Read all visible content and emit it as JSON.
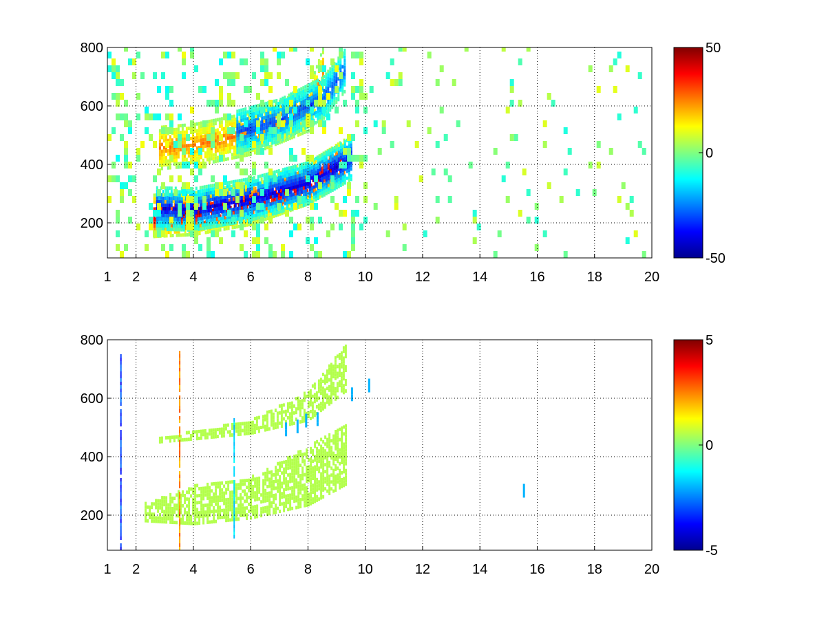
{
  "chart_data": [
    {
      "type": "heatmap",
      "title": "",
      "xlabel": "",
      "ylabel": "",
      "xlim": [
        1,
        20
      ],
      "ylim": [
        80,
        800
      ],
      "grid": true,
      "x_ticks": [
        1,
        2,
        4,
        6,
        8,
        10,
        12,
        14,
        16,
        18,
        20
      ],
      "y_ticks": [
        200,
        400,
        600,
        800
      ],
      "colormap": "jet",
      "colorbar": {
        "min": -50,
        "max": 50,
        "ticks": [
          -50,
          0,
          50
        ]
      },
      "features": [
        {
          "kind": "arc",
          "x": [
            2.6,
            4,
            6,
            8,
            9.3
          ],
          "y": [
            218,
            225,
            260,
            330,
            410
          ],
          "sign": 1,
          "level": 45,
          "note_ref": "red band"
        },
        {
          "kind": "arc",
          "x": [
            2.7,
            4,
            6,
            8,
            9.5
          ],
          "y": [
            243,
            240,
            275,
            330,
            415
          ],
          "sign": -1,
          "level": 40,
          "note_ref": "blue band"
        },
        {
          "kind": "arc",
          "x": [
            2.8,
            4,
            6,
            8,
            8.5
          ],
          "y": [
            450,
            460,
            500,
            580,
            720
          ],
          "sign": 1,
          "level": 25,
          "note_ref": "upper yellow/red band"
        },
        {
          "kind": "arc",
          "x": [
            5.5,
            7,
            8.5,
            9.3
          ],
          "y": [
            505,
            545,
            620,
            720
          ],
          "sign": -1,
          "level": 30,
          "note_ref": "upper blue band"
        },
        {
          "kind": "noise",
          "x_range": [
            1,
            10
          ],
          "y_range": [
            80,
            800
          ],
          "density": 0.6,
          "level": 12
        },
        {
          "kind": "noise",
          "x_range": [
            10,
            20
          ],
          "y_range": [
            80,
            800
          ],
          "density": 0.12,
          "level": 10
        }
      ]
    },
    {
      "type": "heatmap",
      "title": "",
      "xlabel": "",
      "ylabel": "",
      "xlim": [
        1,
        20
      ],
      "ylim": [
        80,
        800
      ],
      "grid": true,
      "x_ticks": [
        1,
        2,
        4,
        6,
        8,
        10,
        12,
        14,
        16,
        18,
        20
      ],
      "y_ticks": [
        200,
        400,
        600,
        800
      ],
      "colormap": "jet",
      "colorbar": {
        "min": -5,
        "max": 5,
        "ticks": [
          -5,
          0,
          5
        ]
      },
      "features": [
        {
          "kind": "band",
          "x": [
            2.3,
            4,
            6,
            8,
            9.3
          ],
          "y_low": [
            175,
            165,
            185,
            230,
            300
          ],
          "y_high": [
            235,
            295,
            325,
            430,
            500
          ],
          "value": 0.5
        },
        {
          "kind": "band",
          "x": [
            2.8,
            4,
            6,
            8,
            9.3
          ],
          "y_low": [
            445,
            455,
            475,
            520,
            620
          ],
          "y_high": [
            465,
            480,
            520,
            620,
            780
          ],
          "value": 0.5
        },
        {
          "kind": "vline",
          "x": 1.45,
          "y_range": [
            80,
            750
          ],
          "value": -4
        },
        {
          "kind": "vline",
          "x": 3.5,
          "y_range": [
            80,
            760
          ],
          "value": 3
        },
        {
          "kind": "vline",
          "x": 5.4,
          "y_range": [
            120,
            520
          ],
          "value": -2
        },
        {
          "kind": "spots",
          "x": [
            7.2,
            7.6,
            7.9,
            8.3,
            9.5,
            10.1,
            15.5
          ],
          "y": [
            470,
            480,
            500,
            505,
            590,
            620,
            260
          ],
          "value": -2
        }
      ]
    }
  ]
}
